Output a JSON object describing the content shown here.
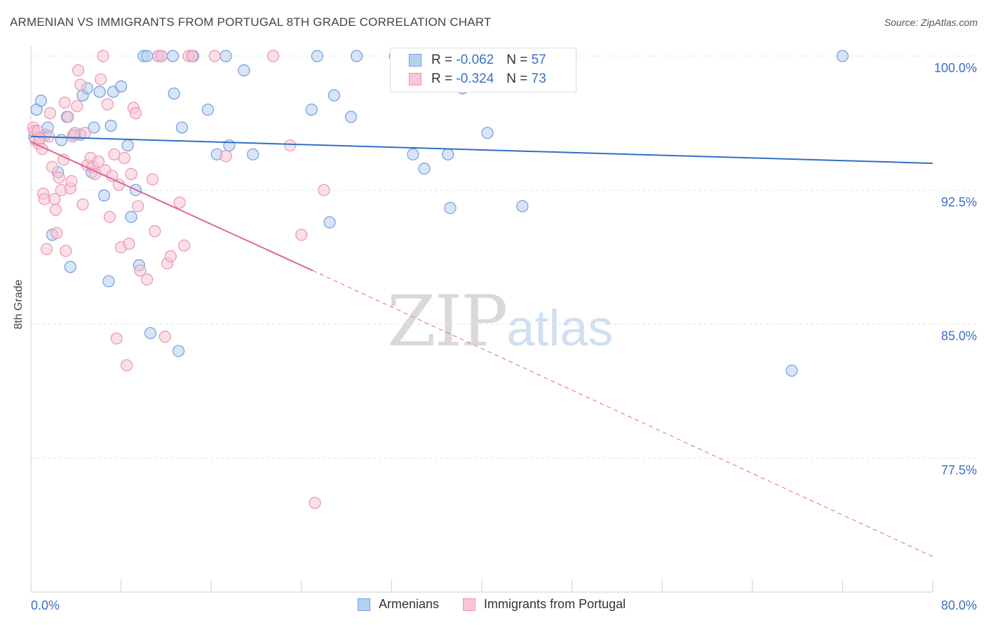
{
  "title": "ARMENIAN VS IMMIGRANTS FROM PORTUGAL 8TH GRADE CORRELATION CHART",
  "source": "Source: ZipAtlas.com",
  "watermark": {
    "zip": "ZIP",
    "atlas": "atlas"
  },
  "legend": {
    "r1_label": "R =",
    "r1_value": "-0.062",
    "n1_label": "N =",
    "n1_value": "57",
    "r2_label": "R =",
    "r2_value": "-0.324",
    "n2_label": "N =",
    "n2_value": "73"
  },
  "colors": {
    "blue_fill": "#b8d0f0",
    "blue_stroke": "#6f9de0",
    "blue_line": "#2f6fc6",
    "pink_fill": "#f8c6d6",
    "pink_stroke": "#ee93b2",
    "pink_line": "#e06592",
    "axis_text": "#3b6fc7",
    "grid": "#e3e3e3"
  },
  "chart_data": {
    "type": "scatter",
    "title": "ARMENIAN VS IMMIGRANTS FROM PORTUGAL 8TH GRADE CORRELATION CHART",
    "xlabel": "",
    "ylabel": "8th Grade",
    "xlim": [
      0,
      80
    ],
    "ylim": [
      70.5,
      101.5
    ],
    "x_tick_labels": [
      "0.0%",
      "80.0%"
    ],
    "y_ticks": [
      100.0,
      92.5,
      85.0,
      77.5
    ],
    "y_tick_labels": [
      "100.0%",
      "92.5%",
      "85.0%",
      "77.5%"
    ],
    "grid": true,
    "legend_position": "bottom",
    "series": [
      {
        "name": "Armenians",
        "color": "#6f9de0",
        "trend": {
          "x": [
            0,
            80
          ],
          "y": [
            95.5,
            94.0
          ]
        },
        "points": [
          [
            0.3,
            95.5
          ],
          [
            0.5,
            97.0
          ],
          [
            0.9,
            97.5
          ],
          [
            1.3,
            95.6
          ],
          [
            1.5,
            96.0
          ],
          [
            1.9,
            90.0
          ],
          [
            2.4,
            93.5
          ],
          [
            2.7,
            95.3
          ],
          [
            3.2,
            96.6
          ],
          [
            3.5,
            88.2
          ],
          [
            3.8,
            95.6
          ],
          [
            4.4,
            95.6
          ],
          [
            4.6,
            97.8
          ],
          [
            5.0,
            98.2
          ],
          [
            5.4,
            93.5
          ],
          [
            5.6,
            96.0
          ],
          [
            6.1,
            98.0
          ],
          [
            6.5,
            92.2
          ],
          [
            6.9,
            87.4
          ],
          [
            7.1,
            96.1
          ],
          [
            7.3,
            98.0
          ],
          [
            8.0,
            98.3
          ],
          [
            8.6,
            95.0
          ],
          [
            8.9,
            91.0
          ],
          [
            9.3,
            92.5
          ],
          [
            9.6,
            88.3
          ],
          [
            10.0,
            100.0
          ],
          [
            10.3,
            100.0
          ],
          [
            10.6,
            84.5
          ],
          [
            11.3,
            100.0
          ],
          [
            11.6,
            100.0
          ],
          [
            12.6,
            100.0
          ],
          [
            12.7,
            97.9
          ],
          [
            13.1,
            83.5
          ],
          [
            13.4,
            96.0
          ],
          [
            14.4,
            100.0
          ],
          [
            15.7,
            97.0
          ],
          [
            16.5,
            94.5
          ],
          [
            17.3,
            100.0
          ],
          [
            17.6,
            95.0
          ],
          [
            18.9,
            99.2
          ],
          [
            19.7,
            94.5
          ],
          [
            25.4,
            100.0
          ],
          [
            24.9,
            97.0
          ],
          [
            26.5,
            90.7
          ],
          [
            26.9,
            97.8
          ],
          [
            28.4,
            96.6
          ],
          [
            28.9,
            100.0
          ],
          [
            32.3,
            100.0
          ],
          [
            33.9,
            94.5
          ],
          [
            34.9,
            93.7
          ],
          [
            37.0,
            94.5
          ],
          [
            37.2,
            91.5
          ],
          [
            38.3,
            98.2
          ],
          [
            40.5,
            95.7
          ],
          [
            43.6,
            91.6
          ],
          [
            67.5,
            82.4
          ],
          [
            72.0,
            100.0
          ]
        ]
      },
      {
        "name": "Immigrants from Portugal",
        "color": "#ee93b2",
        "trend": {
          "x": [
            0,
            25
          ],
          "y": [
            95.2,
            88.0
          ],
          "dashed_to": {
            "x": 80,
            "y": 72.0
          }
        },
        "points": [
          [
            0.2,
            96.0
          ],
          [
            0.3,
            95.8
          ],
          [
            0.4,
            95.3
          ],
          [
            0.6,
            95.8
          ],
          [
            0.7,
            95.1
          ],
          [
            0.8,
            95.4
          ],
          [
            1.0,
            94.8
          ],
          [
            1.1,
            92.3
          ],
          [
            1.2,
            92.0
          ],
          [
            1.4,
            89.2
          ],
          [
            1.6,
            95.5
          ],
          [
            1.7,
            96.8
          ],
          [
            1.9,
            93.8
          ],
          [
            2.1,
            92.0
          ],
          [
            2.2,
            91.4
          ],
          [
            2.3,
            90.1
          ],
          [
            2.5,
            93.2
          ],
          [
            2.7,
            92.5
          ],
          [
            2.9,
            94.2
          ],
          [
            3.0,
            97.4
          ],
          [
            3.1,
            89.1
          ],
          [
            3.3,
            96.6
          ],
          [
            3.5,
            92.6
          ],
          [
            3.6,
            93.0
          ],
          [
            3.7,
            95.5
          ],
          [
            3.9,
            95.7
          ],
          [
            4.1,
            97.2
          ],
          [
            4.2,
            99.2
          ],
          [
            4.4,
            98.4
          ],
          [
            4.6,
            91.7
          ],
          [
            4.8,
            95.7
          ],
          [
            5.0,
            93.9
          ],
          [
            5.3,
            94.3
          ],
          [
            5.5,
            93.8
          ],
          [
            5.7,
            93.4
          ],
          [
            6.0,
            94.1
          ],
          [
            6.2,
            98.7
          ],
          [
            6.4,
            100.0
          ],
          [
            6.6,
            93.6
          ],
          [
            6.8,
            97.3
          ],
          [
            7.0,
            91.0
          ],
          [
            7.2,
            93.3
          ],
          [
            7.4,
            94.5
          ],
          [
            7.6,
            84.2
          ],
          [
            7.8,
            92.8
          ],
          [
            8.0,
            89.3
          ],
          [
            8.3,
            94.3
          ],
          [
            8.5,
            82.7
          ],
          [
            8.7,
            89.5
          ],
          [
            8.9,
            93.4
          ],
          [
            9.1,
            97.1
          ],
          [
            9.3,
            96.8
          ],
          [
            9.5,
            91.6
          ],
          [
            9.7,
            88.0
          ],
          [
            10.3,
            87.5
          ],
          [
            10.8,
            93.1
          ],
          [
            11.0,
            90.2
          ],
          [
            11.3,
            100.0
          ],
          [
            11.6,
            100.0
          ],
          [
            11.9,
            84.3
          ],
          [
            12.1,
            88.4
          ],
          [
            12.4,
            88.8
          ],
          [
            13.2,
            91.8
          ],
          [
            13.6,
            89.4
          ],
          [
            14.0,
            100.0
          ],
          [
            14.3,
            100.0
          ],
          [
            16.3,
            100.0
          ],
          [
            17.3,
            94.4
          ],
          [
            21.5,
            100.0
          ],
          [
            23.0,
            95.0
          ],
          [
            24.0,
            90.0
          ],
          [
            25.2,
            75.0
          ],
          [
            26.0,
            92.5
          ]
        ]
      }
    ]
  },
  "bottom_legend": {
    "series1": "Armenians",
    "series2": "Immigrants from Portugal"
  }
}
